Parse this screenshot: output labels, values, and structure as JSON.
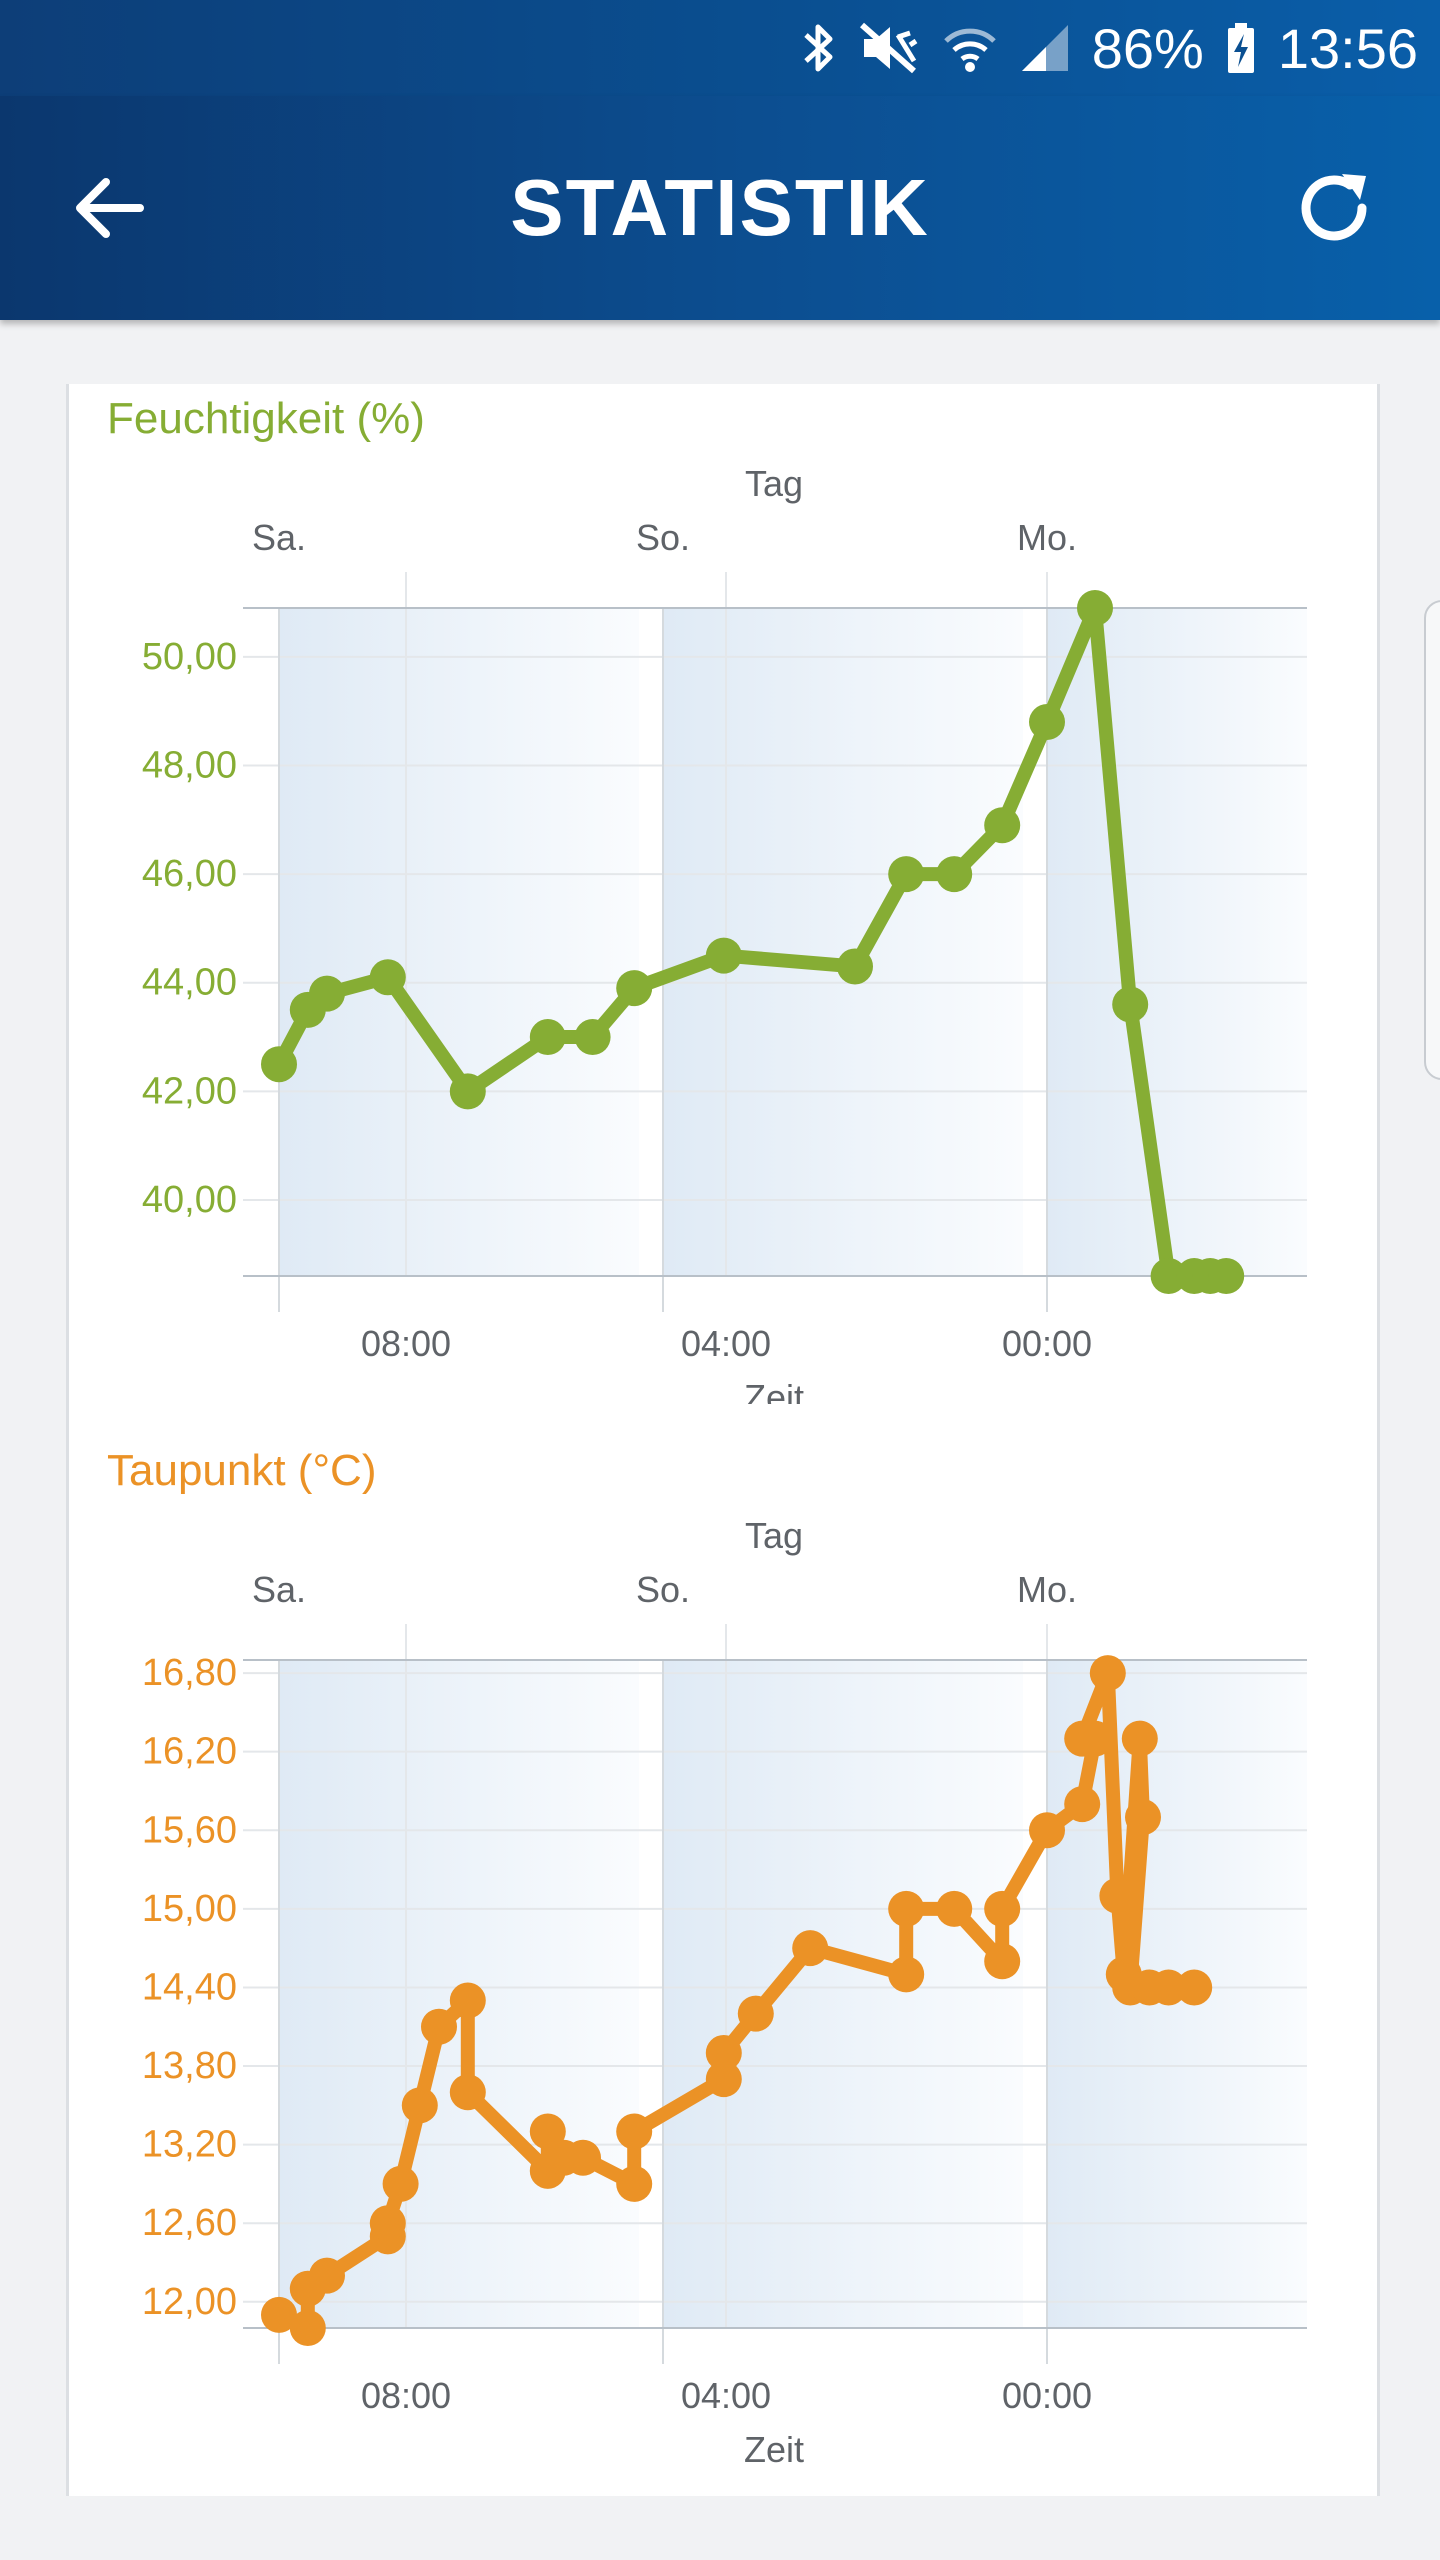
{
  "status_bar": {
    "battery": "86%",
    "time": "13:56",
    "icons": [
      "bluetooth-icon",
      "mute-vibrate-icon",
      "wifi-icon",
      "signal-icon",
      "battery-charging-icon"
    ]
  },
  "app_bar": {
    "title": "STATISTIK",
    "back_icon": "arrow-left-icon",
    "refresh_icon": "refresh-icon"
  },
  "colors": {
    "humidity": "#86ad34",
    "dewpoint": "#eb9226",
    "axis_text": "#5f6368"
  },
  "chart_data": [
    {
      "type": "line",
      "title": "Feuchtigkeit (%)",
      "top_axis_label": "Tag",
      "top_axis_ticks": [
        "Sa.",
        "So.",
        "Mo."
      ],
      "xlabel": "Zeit",
      "x_ticks": [
        "08:00",
        "04:00",
        "00:00"
      ],
      "y_ticks": [
        "40,00",
        "42,00",
        "44,00",
        "46,00",
        "48,00",
        "50,00"
      ],
      "ylim": [
        38.6,
        50.9
      ],
      "color": "#86ad34",
      "series": [
        {
          "x": [
            0,
            0.9,
            1.5,
            3.4,
            5.9,
            8.4,
            9.8,
            11.1,
            13.9,
            18.0,
            19.6,
            21.1,
            22.6,
            24.0,
            25.5,
            26.6,
            27.8,
            28.6,
            29.1,
            29.6
          ],
          "values": [
            42.5,
            43.5,
            43.8,
            44.1,
            42.0,
            43.0,
            43.0,
            43.9,
            44.5,
            44.3,
            46.0,
            46.0,
            46.9,
            48.8,
            50.9,
            43.6,
            38.6,
            38.6,
            38.6,
            38.6
          ]
        }
      ]
    },
    {
      "type": "line",
      "title": "Taupunkt (°C)",
      "top_axis_label": "Tag",
      "top_axis_ticks": [
        "Sa.",
        "So.",
        "Mo."
      ],
      "xlabel": "Zeit",
      "x_ticks": [
        "08:00",
        "04:00",
        "00:00"
      ],
      "y_ticks": [
        "12,00",
        "12,60",
        "13,20",
        "13,80",
        "14,40",
        "15,00",
        "15,60",
        "16,20",
        "16,80"
      ],
      "ylim": [
        11.8,
        16.9
      ],
      "color": "#eb9226",
      "series": [
        {
          "x": [
            0,
            0.9,
            0.9,
            1.5,
            3.4,
            3.4,
            3.8,
            4.4,
            5.0,
            5.9,
            5.9,
            8.4,
            8.4,
            8.9,
            9.5,
            11.1,
            11.1,
            13.9,
            13.9,
            14.9,
            16.6,
            19.6,
            19.6,
            21.1,
            22.6,
            22.6,
            24.0,
            25.1,
            25.5,
            25.1,
            25.9,
            26.2,
            26.4,
            26.9,
            27.0,
            26.6,
            27.2,
            27.8,
            28.6
          ],
          "values": [
            11.9,
            11.8,
            12.1,
            12.2,
            12.5,
            12.6,
            12.9,
            13.5,
            14.1,
            14.3,
            13.6,
            13.0,
            13.3,
            13.1,
            13.1,
            12.9,
            13.3,
            13.7,
            13.9,
            14.2,
            14.7,
            14.5,
            15.0,
            15.0,
            14.6,
            15.0,
            15.6,
            15.8,
            16.3,
            16.3,
            16.8,
            15.1,
            14.5,
            16.3,
            15.7,
            14.4,
            14.4,
            14.4,
            14.4
          ]
        }
      ]
    }
  ]
}
